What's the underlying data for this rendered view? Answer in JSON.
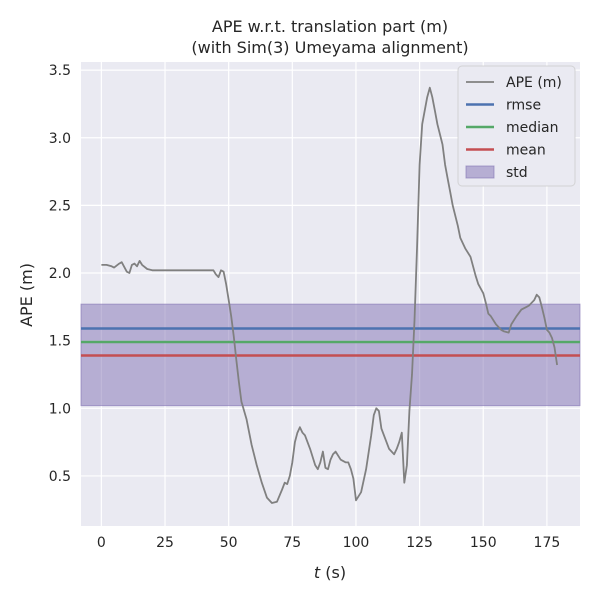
{
  "chart_data": {
    "type": "line",
    "title_line1": "APE w.r.t. translation part (m)",
    "title_line2": "(with Sim(3) Umeyama alignment)",
    "xlabel_var": "t",
    "xlabel_unit": " (s)",
    "ylabel": "APE (m)",
    "xlim": [
      -8,
      188
    ],
    "ylim": [
      0.13,
      3.56
    ],
    "xticks": [
      0,
      25,
      50,
      75,
      100,
      125,
      150,
      175
    ],
    "yticks": [
      0.5,
      1.0,
      1.5,
      2.0,
      2.5,
      3.0,
      3.5
    ],
    "ytick_labels": [
      "0.5",
      "1.0",
      "1.5",
      "2.0",
      "2.5",
      "3.0",
      "3.5"
    ],
    "grid": true,
    "legend_position": "top-right",
    "series": [
      {
        "name": "APE (m)",
        "kind": "line",
        "color": "#808080",
        "x": [
          0,
          2,
          4,
          5,
          7,
          8,
          10,
          11,
          12,
          13,
          14,
          15,
          16,
          18,
          20,
          25,
          30,
          35,
          40,
          42,
          44,
          45,
          46,
          47,
          48,
          49,
          50,
          51,
          52,
          53,
          54,
          55,
          57,
          59,
          61,
          63,
          65,
          67,
          69,
          71,
          72,
          73,
          74,
          75,
          76,
          77,
          78,
          79,
          80,
          82,
          84,
          85,
          86,
          87,
          88,
          89,
          90,
          91,
          92,
          94,
          96,
          97,
          98,
          99,
          100,
          102,
          104,
          106,
          107,
          108,
          109,
          110,
          112,
          113,
          115,
          116,
          117,
          118,
          119,
          120,
          121,
          122,
          123,
          124,
          125,
          126,
          127,
          128,
          129,
          130,
          131,
          132,
          134,
          135,
          136,
          137,
          138,
          140,
          141,
          143,
          145,
          147,
          148,
          150,
          151,
          152,
          153,
          155,
          157,
          158,
          160,
          161,
          163,
          165,
          167,
          168,
          169,
          170,
          171,
          172,
          173,
          174,
          175,
          176,
          177,
          178,
          179
        ],
        "y": [
          2.06,
          2.06,
          2.05,
          2.04,
          2.07,
          2.08,
          2.01,
          2.0,
          2.06,
          2.07,
          2.05,
          2.09,
          2.06,
          2.03,
          2.02,
          2.02,
          2.02,
          2.02,
          2.02,
          2.02,
          2.02,
          1.99,
          1.97,
          2.02,
          2.01,
          1.92,
          1.8,
          1.68,
          1.53,
          1.36,
          1.2,
          1.05,
          0.92,
          0.73,
          0.58,
          0.45,
          0.34,
          0.3,
          0.31,
          0.4,
          0.45,
          0.44,
          0.5,
          0.6,
          0.75,
          0.82,
          0.86,
          0.82,
          0.8,
          0.7,
          0.58,
          0.55,
          0.6,
          0.68,
          0.56,
          0.55,
          0.62,
          0.66,
          0.68,
          0.62,
          0.6,
          0.6,
          0.55,
          0.48,
          0.32,
          0.38,
          0.55,
          0.8,
          0.95,
          1.0,
          0.98,
          0.85,
          0.75,
          0.7,
          0.66,
          0.7,
          0.75,
          0.82,
          0.45,
          0.58,
          0.98,
          1.25,
          1.65,
          2.2,
          2.8,
          3.1,
          3.2,
          3.3,
          3.37,
          3.3,
          3.2,
          3.1,
          2.95,
          2.8,
          2.7,
          2.6,
          2.5,
          2.35,
          2.26,
          2.18,
          2.12,
          1.98,
          1.92,
          1.85,
          1.78,
          1.7,
          1.68,
          1.62,
          1.58,
          1.57,
          1.56,
          1.62,
          1.68,
          1.73,
          1.75,
          1.76,
          1.78,
          1.8,
          1.84,
          1.82,
          1.75,
          1.67,
          1.58,
          1.56,
          1.52,
          1.45,
          1.32
        ]
      },
      {
        "name": "rmse",
        "kind": "hline",
        "color": "#4c72b0",
        "value": 1.59
      },
      {
        "name": "median",
        "kind": "hline",
        "color": "#55a868",
        "value": 1.49
      },
      {
        "name": "mean",
        "kind": "hline",
        "color": "#c44e52",
        "value": 1.39
      },
      {
        "name": "std",
        "kind": "band",
        "color": "#8172b3",
        "range": [
          1.02,
          1.77
        ]
      }
    ]
  }
}
